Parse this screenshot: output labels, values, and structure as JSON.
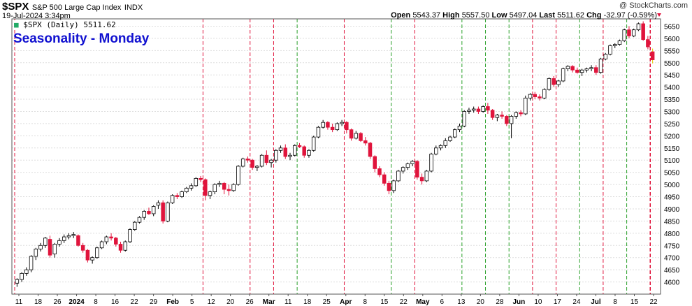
{
  "header": {
    "symbol": "$SPX",
    "name": "S&P 500 Large Cap Index",
    "exchange": "INDX",
    "date": "19-Jul-2024 3:34pm",
    "brand": "@ StockCharts.com",
    "open_label": "Open",
    "open": "5543.37",
    "high_label": "High",
    "high": "5557.50",
    "low_label": "Low",
    "low": "5497.04",
    "last_label": "Last",
    "last": "5511.62",
    "chg_label": "Chg",
    "chg": "-32.97 (-0.59%)"
  },
  "legend": {
    "label": "$SPX (Daily) 5511.62"
  },
  "annotation": {
    "text": "Seasonality - Monday"
  },
  "colors": {
    "up": "#ffffff",
    "down": "#e0143c",
    "green_line": "#2aa02a",
    "red_line": "#e0143c",
    "title": "#1010d0",
    "last_marker": "#e8c800"
  },
  "chart_data": {
    "type": "candlestick",
    "title": "$SPX (Daily) 5511.62",
    "ylim": [
      4550,
      5680
    ],
    "y_ticks": [
      4600,
      4650,
      4700,
      4750,
      4800,
      4850,
      4900,
      4950,
      5000,
      5050,
      5100,
      5150,
      5200,
      5250,
      5300,
      5350,
      5400,
      5450,
      5500,
      5550,
      5600,
      5650
    ],
    "x_tick_labels": [
      "11",
      "18",
      "26",
      "2024",
      "8",
      "16",
      "22",
      "29",
      "Feb",
      "5",
      "12",
      "20",
      "26",
      "Mar",
      "11",
      "18",
      "25",
      "Apr",
      "8",
      "15",
      "22",
      "May",
      "6",
      "13",
      "20",
      "28",
      "Jun",
      "10",
      "17",
      "24",
      "Jul",
      "8",
      "15",
      "22"
    ],
    "green_verticals": [
      12,
      16,
      19,
      20,
      21,
      24,
      26,
      30,
      32,
      35,
      36,
      37,
      41,
      44,
      47,
      48,
      50,
      53,
      55,
      59,
      62,
      63,
      68,
      70,
      71
    ],
    "red_verticals": [
      0,
      8,
      10,
      11,
      14,
      17,
      22,
      23,
      25,
      29,
      31,
      33,
      38,
      39,
      40,
      42,
      43,
      45,
      46,
      49,
      51,
      52,
      56,
      57,
      58,
      60,
      61
    ],
    "series": [
      {
        "ohlc": [
          [
            4595,
            4615,
            4580,
            4610
          ],
          [
            4610,
            4640,
            4600,
            4635
          ],
          [
            4635,
            4660,
            4625,
            4650
          ],
          [
            4650,
            4710,
            4640,
            4705
          ],
          [
            4705,
            4740,
            4690,
            4735
          ],
          [
            4735,
            4760,
            4725,
            4750
          ],
          [
            4750,
            4785,
            4740,
            4780
          ],
          [
            4775,
            4790,
            4700,
            4710
          ],
          [
            4715,
            4760,
            4700,
            4755
          ],
          [
            4755,
            4780,
            4745,
            4770
          ],
          [
            4770,
            4795,
            4760,
            4785
          ],
          [
            4785,
            4800,
            4775,
            4790
          ],
          [
            4790,
            4805,
            4780,
            4795
          ],
          [
            4790,
            4795,
            4745,
            4750
          ],
          [
            4750,
            4760,
            4720,
            4730
          ],
          [
            4730,
            4735,
            4680,
            4690
          ],
          [
            4690,
            4705,
            4675,
            4700
          ],
          [
            4700,
            4745,
            4695,
            4740
          ],
          [
            4740,
            4770,
            4735,
            4765
          ],
          [
            4765,
            4790,
            4755,
            4785
          ],
          [
            4785,
            4800,
            4770,
            4780
          ],
          [
            4780,
            4785,
            4745,
            4755
          ],
          [
            4755,
            4765,
            4720,
            4730
          ],
          [
            4730,
            4770,
            4725,
            4765
          ],
          [
            4765,
            4820,
            4760,
            4815
          ],
          [
            4815,
            4850,
            4810,
            4845
          ],
          [
            4845,
            4870,
            4840,
            4865
          ],
          [
            4865,
            4895,
            4855,
            4890
          ],
          [
            4890,
            4905,
            4875,
            4880
          ],
          [
            4880,
            4915,
            4870,
            4910
          ],
          [
            4915,
            4935,
            4900,
            4925
          ],
          [
            4925,
            4935,
            4840,
            4850
          ],
          [
            4850,
            4930,
            4845,
            4925
          ],
          [
            4925,
            4960,
            4920,
            4955
          ],
          [
            4955,
            4965,
            4940,
            4950
          ],
          [
            4950,
            4975,
            4945,
            4970
          ],
          [
            4970,
            4990,
            4965,
            4985
          ],
          [
            4985,
            5005,
            4975,
            4995
          ],
          [
            4995,
            5030,
            4990,
            5025
          ],
          [
            5025,
            5035,
            5010,
            5020
          ],
          [
            5020,
            5025,
            4935,
            4955
          ],
          [
            4955,
            4975,
            4940,
            4970
          ],
          [
            4970,
            5005,
            4960,
            5000
          ],
          [
            5000,
            5015,
            4990,
            5005
          ],
          [
            5005,
            5010,
            4960,
            4980
          ],
          [
            4980,
            5000,
            4955,
            4975
          ],
          [
            4975,
            5005,
            4970,
            5000
          ],
          [
            5000,
            5080,
            4995,
            5075
          ],
          [
            5075,
            5110,
            5070,
            5105
          ],
          [
            5105,
            5115,
            5090,
            5100
          ],
          [
            5100,
            5105,
            5060,
            5070
          ],
          [
            5070,
            5080,
            5055,
            5075
          ],
          [
            5075,
            5125,
            5070,
            5120
          ],
          [
            5120,
            5140,
            5080,
            5090
          ],
          [
            5090,
            5105,
            5070,
            5100
          ],
          [
            5100,
            5145,
            5090,
            5140
          ],
          [
            5140,
            5160,
            5130,
            5150
          ],
          [
            5150,
            5165,
            5105,
            5115
          ],
          [
            5115,
            5130,
            5100,
            5120
          ],
          [
            5120,
            5165,
            5115,
            5160
          ],
          [
            5160,
            5170,
            5150,
            5155
          ],
          [
            5155,
            5160,
            5110,
            5120
          ],
          [
            5120,
            5145,
            5110,
            5140
          ],
          [
            5140,
            5200,
            5135,
            5195
          ],
          [
            5195,
            5240,
            5190,
            5235
          ],
          [
            5235,
            5265,
            5230,
            5255
          ],
          [
            5255,
            5260,
            5225,
            5235
          ],
          [
            5235,
            5250,
            5215,
            5225
          ],
          [
            5225,
            5255,
            5220,
            5250
          ],
          [
            5250,
            5265,
            5240,
            5255
          ],
          [
            5255,
            5260,
            5210,
            5225
          ],
          [
            5225,
            5230,
            5180,
            5190
          ],
          [
            5190,
            5220,
            5185,
            5210
          ],
          [
            5210,
            5215,
            5175,
            5180
          ],
          [
            5180,
            5195,
            5160,
            5170
          ],
          [
            5170,
            5175,
            5105,
            5115
          ],
          [
            5115,
            5120,
            5050,
            5065
          ],
          [
            5065,
            5075,
            5030,
            5040
          ],
          [
            5040,
            5050,
            4995,
            5005
          ],
          [
            5005,
            5015,
            4960,
            4975
          ],
          [
            4975,
            5020,
            4965,
            5015
          ],
          [
            5015,
            5060,
            5010,
            5055
          ],
          [
            5055,
            5075,
            5045,
            5070
          ],
          [
            5070,
            5090,
            5060,
            5085
          ],
          [
            5085,
            5100,
            5075,
            5095
          ],
          [
            5095,
            5100,
            5020,
            5030
          ],
          [
            5030,
            5045,
            5000,
            5015
          ],
          [
            5015,
            5060,
            5010,
            5055
          ],
          [
            5055,
            5130,
            5050,
            5125
          ],
          [
            5125,
            5160,
            5120,
            5150
          ],
          [
            5150,
            5165,
            5140,
            5160
          ],
          [
            5160,
            5190,
            5150,
            5180
          ],
          [
            5180,
            5200,
            5175,
            5195
          ],
          [
            5195,
            5230,
            5190,
            5225
          ],
          [
            5225,
            5250,
            5215,
            5240
          ],
          [
            5240,
            5305,
            5235,
            5300
          ],
          [
            5300,
            5315,
            5290,
            5305
          ],
          [
            5305,
            5320,
            5295,
            5310
          ],
          [
            5310,
            5320,
            5290,
            5300
          ],
          [
            5300,
            5325,
            5295,
            5320
          ],
          [
            5320,
            5335,
            5290,
            5305
          ],
          [
            5305,
            5310,
            5265,
            5275
          ],
          [
            5275,
            5290,
            5260,
            5285
          ],
          [
            5285,
            5300,
            5270,
            5280
          ],
          [
            5280,
            5285,
            5240,
            5250
          ],
          [
            5250,
            5285,
            5190,
            5280
          ],
          [
            5280,
            5300,
            5270,
            5295
          ],
          [
            5295,
            5305,
            5280,
            5290
          ],
          [
            5290,
            5365,
            5285,
            5355
          ],
          [
            5355,
            5375,
            5345,
            5370
          ],
          [
            5370,
            5380,
            5350,
            5360
          ],
          [
            5360,
            5370,
            5345,
            5355
          ],
          [
            5355,
            5395,
            5350,
            5390
          ],
          [
            5390,
            5440,
            5385,
            5435
          ],
          [
            5435,
            5445,
            5400,
            5410
          ],
          [
            5410,
            5430,
            5400,
            5425
          ],
          [
            5425,
            5480,
            5420,
            5475
          ],
          [
            5475,
            5490,
            5465,
            5485
          ],
          [
            5485,
            5490,
            5460,
            5470
          ],
          [
            5470,
            5480,
            5455,
            5460
          ],
          [
            5460,
            5475,
            5445,
            5470
          ],
          [
            5470,
            5480,
            5460,
            5475
          ],
          [
            5475,
            5490,
            5465,
            5480
          ],
          [
            5480,
            5490,
            5450,
            5460
          ],
          [
            5460,
            5520,
            5455,
            5515
          ],
          [
            5515,
            5540,
            5510,
            5535
          ],
          [
            5535,
            5575,
            5530,
            5570
          ],
          [
            5570,
            5580,
            5560,
            5575
          ],
          [
            5575,
            5595,
            5570,
            5590
          ],
          [
            5590,
            5640,
            5585,
            5635
          ],
          [
            5635,
            5650,
            5600,
            5610
          ],
          [
            5610,
            5640,
            5605,
            5635
          ],
          [
            5635,
            5665,
            5630,
            5660
          ],
          [
            5660,
            5670,
            5590,
            5595
          ],
          [
            5595,
            5610,
            5555,
            5565
          ],
          [
            5545,
            5558,
            5497,
            5512
          ]
        ]
      }
    ]
  }
}
